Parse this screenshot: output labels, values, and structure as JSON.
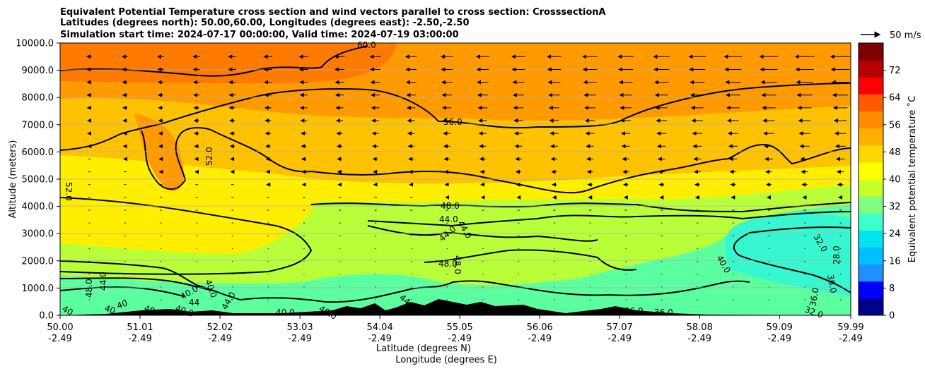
{
  "chart_data": {
    "type": "heatmap",
    "title_lines": [
      "Equivalent Potential Temperature cross section and wind vectors parallel to cross section: CrosssectionA",
      "Latitudes (degrees north): 50.00,60.00, Longitudes (degrees east): -2.50,-2.50",
      "Simulation start time: 2024-07-17 00:00:00, Valid time: 2024-07-19 03:00:00"
    ],
    "xlabel": "Latitude (degrees N)",
    "xlabel2": "Longitude (degrees E)",
    "ylabel": "Altitude (meters)",
    "colorbar_label": "Equivalent potential temperature ˚C",
    "xlim": [
      50.0,
      59.99
    ],
    "ylim": [
      0,
      10000
    ],
    "x_ticks": [
      {
        "lat": "50.00",
        "lon": "-2.49"
      },
      {
        "lat": "51.01",
        "lon": "-2.49"
      },
      {
        "lat": "52.02",
        "lon": "-2.49"
      },
      {
        "lat": "53.03",
        "lon": "-2.49"
      },
      {
        "lat": "54.04",
        "lon": "-2.49"
      },
      {
        "lat": "55.05",
        "lon": "-2.49"
      },
      {
        "lat": "56.06",
        "lon": "-2.49"
      },
      {
        "lat": "57.07",
        "lon": "-2.49"
      },
      {
        "lat": "58.08",
        "lon": "-2.49"
      },
      {
        "lat": "59.09",
        "lon": "-2.49"
      },
      {
        "lat": "59.99",
        "lon": "-2.49"
      }
    ],
    "y_ticks": [
      "0.0",
      "1000.0",
      "2000.0",
      "3000.0",
      "4000.0",
      "5000.0",
      "6000.0",
      "7000.0",
      "8000.0",
      "9000.0",
      "10000.0"
    ],
    "grid": true,
    "colorbar": {
      "ticks": [
        "0",
        "8",
        "16",
        "24",
        "32",
        "40",
        "48",
        "56",
        "64",
        "72"
      ],
      "range": [
        0,
        80
      ],
      "colors": [
        "#00008b",
        "#0000ff",
        "#1e90ff",
        "#00bfff",
        "#00e5ee",
        "#3dffc8",
        "#7fff7f",
        "#c8ff28",
        "#ffff00",
        "#ffd700",
        "#ffb000",
        "#ff8c00",
        "#ff5a00",
        "#ff0000",
        "#b40000",
        "#7f0000"
      ]
    },
    "contour_labels": [
      "60.0",
      "56.0",
      "52.0",
      "52.0",
      "48.0",
      "44.0",
      "44.0",
      "44.0",
      "48.0",
      "48.0",
      "40.0",
      "32.0",
      "28.0",
      "36.0",
      "36.0",
      "32.0",
      "44.0",
      "44.0",
      "48.0",
      "40.0",
      "40.0",
      "44.0",
      "40.0",
      "40.0",
      "40.0",
      "40",
      "40",
      "40",
      "40",
      "44",
      "36.0",
      "36.0"
    ],
    "wind_reference": "50 m/s",
    "wind_direction_aloft": "southward (toward lower latitudes), strengthening northward"
  }
}
